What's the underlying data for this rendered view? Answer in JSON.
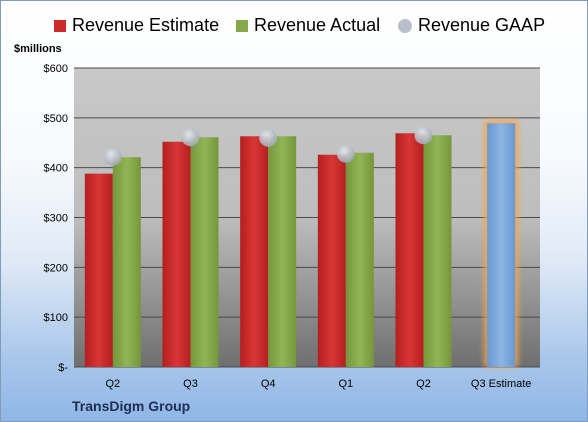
{
  "chart_data": {
    "type": "bar",
    "unit_label": "$millions",
    "categories": [
      "Q2",
      "Q3",
      "Q4",
      "Q1",
      "Q2",
      "Q3 Estimate"
    ],
    "series": [
      {
        "name": "Revenue Estimate",
        "color": "#cc2b2b",
        "values": [
          388,
          452,
          463,
          426,
          469,
          null
        ]
      },
      {
        "name": "Revenue Actual",
        "color": "#86a84a",
        "values": [
          421,
          461,
          463,
          430,
          465,
          null
        ]
      },
      {
        "name": "Revenue GAAP",
        "color": "#b9bec8",
        "marker": "circle",
        "values": [
          422,
          461,
          460,
          428,
          465,
          null
        ]
      }
    ],
    "estimate": {
      "category": "Q3 Estimate",
      "value": 489,
      "color": "#7ba7dc",
      "glow_color": "#f5a64a"
    },
    "y_ticks": [
      "$-",
      "$100",
      "$200",
      "$300",
      "$400",
      "$500",
      "$600"
    ],
    "ylim": [
      0,
      600
    ],
    "grid": true,
    "legend_position": "top"
  },
  "legend": {
    "estimate_label": "Revenue Estimate",
    "actual_label": "Revenue Actual",
    "gaap_label": "Revenue GAAP"
  },
  "company": "TransDigm Group",
  "colors": {
    "plot_top": "#c8c8c8",
    "plot_bottom": "#6f6f6f",
    "gridline": "#4a4a4a"
  }
}
